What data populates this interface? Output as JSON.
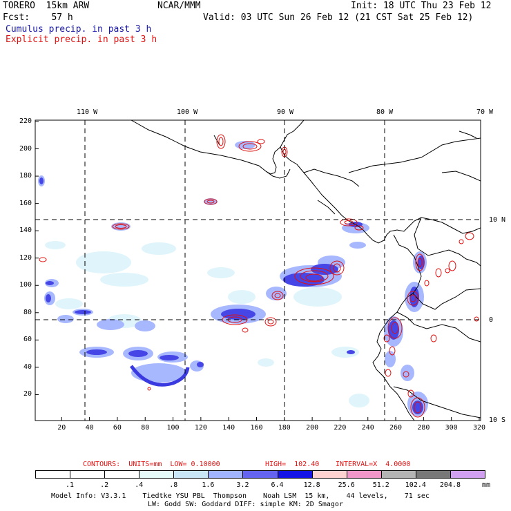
{
  "header": {
    "model": "TORERO  15km ARW",
    "org": "NCAR/MMM",
    "init": "Init: 18 UTC Thu 23 Feb 12",
    "fcst": "Fcst:    57 h",
    "valid": "Valid: 03 UTC Sun 26 Feb 12 (21 CST Sat 25 Feb 12)",
    "line_cumulus": "Cumulus precip. in past 3 h",
    "line_explicit": "Explicit precip. in past 3 h"
  },
  "colors": {
    "cumulus_text": "#1a1aa6",
    "explicit_text": "#e01010",
    "contour": "#e01010",
    "land_line": "#000000"
  },
  "map": {
    "top_lon_labels": [
      "110 W",
      "100 W",
      "90 W",
      "80 W",
      "70 W"
    ],
    "right_lat_labels": [
      "10 N",
      "0",
      "10 S"
    ],
    "x_ticks": [
      "20",
      "40",
      "60",
      "80",
      "100",
      "120",
      "140",
      "160",
      "180",
      "200",
      "220",
      "240",
      "260",
      "280",
      "300",
      "320"
    ],
    "y_ticks": [
      "20",
      "40",
      "60",
      "80",
      "100",
      "120",
      "140",
      "160",
      "180",
      "200",
      "220"
    ]
  },
  "contour_info": {
    "label": "CONTOURS:  UNITS=mm  LOW= 0.10000",
    "high": "HIGH=  102.40",
    "interval": "INTERVAL=X  4.0000"
  },
  "colorbar": {
    "unit": "mm",
    "labels": [
      ".1",
      ".2",
      ".4",
      ".8",
      "1.6",
      "3.2",
      "6.4",
      "12.8",
      "25.6",
      "51.2",
      "102.4",
      "204.8"
    ],
    "colors": [
      "#ffffff",
      "#ffffff",
      "#ffffff",
      "#e6fafa",
      "#c8e6f5",
      "#a0b4ff",
      "#6464f0",
      "#1414e6",
      "#ffd2d2",
      "#f096c8",
      "#b4b4b4",
      "#787878",
      "#d2a0f0"
    ]
  },
  "footer": {
    "line1": "Model Info: V3.3.1    Tiedtke YSU PBL  Thompson    Noah LSM  15 km,    44 levels,    71 sec",
    "line2": "LW: Godd SW: Goddard DIFF: simple KM: 2D Smagor"
  }
}
